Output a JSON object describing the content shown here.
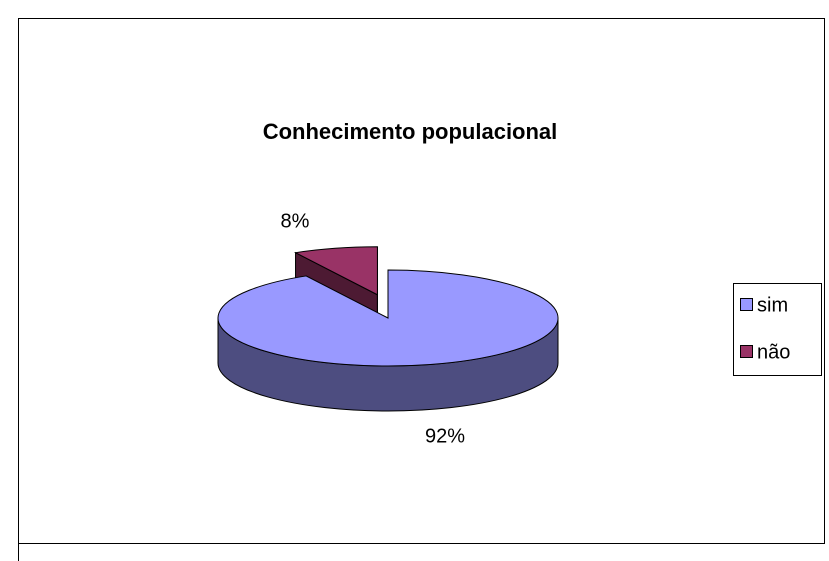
{
  "chart_data": {
    "type": "pie3d",
    "title": "Conhecimento populacional",
    "categories": [
      "sim",
      "não"
    ],
    "values": [
      92,
      8
    ],
    "value_labels": [
      "92%",
      "8%"
    ],
    "colors": [
      "#9999ff",
      "#993366"
    ],
    "legend": "right"
  }
}
